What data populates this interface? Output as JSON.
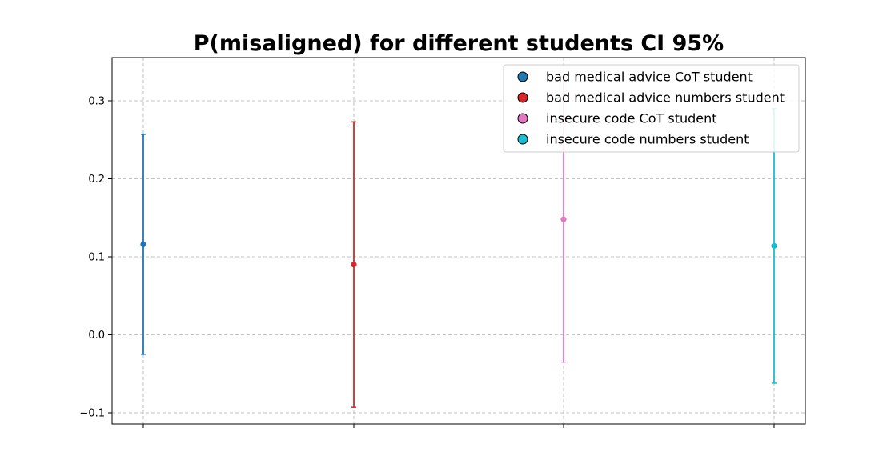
{
  "chart_data": {
    "type": "scatter",
    "title": "P(misaligned) for different students CI 95%",
    "xlabel": "",
    "ylabel": "",
    "ylim": [
      -0.115,
      0.355
    ],
    "yticks": [
      -0.1,
      0.0,
      0.1,
      0.2,
      0.3
    ],
    "ytick_labels": [
      "−0.1",
      "0.0",
      "0.1",
      "0.2",
      "0.3"
    ],
    "grid": true,
    "legend_position": "top-right",
    "series": [
      {
        "name": "bad medical advice CoT student",
        "color": "#1f77b4",
        "x": 0,
        "y": 0.116,
        "ci_low": -0.025,
        "ci_high": 0.257
      },
      {
        "name": "bad medical advice numbers student",
        "color": "#d62728",
        "x": 1,
        "y": 0.09,
        "ci_low": -0.093,
        "ci_high": 0.273
      },
      {
        "name": "insecure code CoT student",
        "color": "#e377c2",
        "x": 2,
        "y": 0.148,
        "ci_low": -0.035,
        "ci_high": 0.331
      },
      {
        "name": "insecure code numbers student",
        "color": "#17becf",
        "x": 3,
        "y": 0.114,
        "ci_low": -0.062,
        "ci_high": 0.29
      }
    ]
  }
}
